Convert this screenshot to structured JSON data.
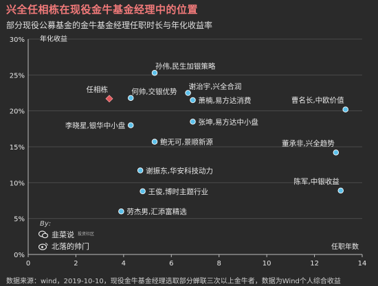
{
  "header": {
    "title": "兴全任相栋在现役金牛基金经理中的位置",
    "subtitle": "部分现役公募基金的金牛基金经理任职时长与年化收益率"
  },
  "footer": {
    "source": "数据来源：wind，2019-10-10，现役金牛基金经理选取部分蝉联三次以上金牛者，数据为Wind个人综合收益"
  },
  "credits": {
    "by_label": "By:",
    "wechat_name": "韭菜说",
    "wechat_tag": "投资社区",
    "weibo_name": "北落的帅门"
  },
  "colors": {
    "background": "#2a2a2a",
    "title": "#f27a7a",
    "point": "#5bc0ea",
    "highlight": "#e0565b",
    "axis": "#bdbdbd",
    "grid": "#4a4a4a",
    "text": "#e8e8e8"
  },
  "chart_data": {
    "type": "scatter",
    "title": "兴全任相栋在现役金牛基金经理中的位置",
    "xlabel": "任职年数",
    "ylabel": "年化收益",
    "xlim": [
      0,
      14
    ],
    "ylim": [
      0,
      30
    ],
    "x_ticks": [
      "0",
      "2",
      "4",
      "6",
      "8",
      "10",
      "12",
      "14"
    ],
    "y_ticks": [
      "0%",
      "5%",
      "10%",
      "15%",
      "20%",
      "25%",
      "30%"
    ],
    "grid": "horizontal",
    "points": [
      {
        "label": "孙伟,民生加银策略",
        "x": 5.3,
        "y": 25.3,
        "highlight": false,
        "label_pos": "above-right"
      },
      {
        "label": "何帅,交银优势",
        "x": 4.3,
        "y": 21.8,
        "highlight": false,
        "label_pos": "above-right"
      },
      {
        "label": "任相栋",
        "x": 3.4,
        "y": 21.7,
        "highlight": true,
        "label_pos": "above-left"
      },
      {
        "label": "谢治宇,兴全合润",
        "x": 6.7,
        "y": 22.5,
        "highlight": false,
        "label_pos": "above-right"
      },
      {
        "label": "萧楠,易方达消费",
        "x": 6.9,
        "y": 21.5,
        "highlight": false,
        "label_pos": "right"
      },
      {
        "label": "曹名长,中欧价值",
        "x": 13.3,
        "y": 20.2,
        "highlight": false,
        "label_pos": "above-left"
      },
      {
        "label": "李晓星,银华中小盘",
        "x": 4.3,
        "y": 18.0,
        "highlight": false,
        "label_pos": "left"
      },
      {
        "label": "张坤,易方达中小盘",
        "x": 6.9,
        "y": 18.5,
        "highlight": false,
        "label_pos": "right"
      },
      {
        "label": "鲍无可,景顺新源",
        "x": 5.3,
        "y": 15.7,
        "highlight": false,
        "label_pos": "right"
      },
      {
        "label": "董承非,兴全趋势",
        "x": 12.9,
        "y": 14.2,
        "highlight": false,
        "label_pos": "above-left"
      },
      {
        "label": "谢振东,华安科技动力",
        "x": 4.7,
        "y": 11.7,
        "highlight": false,
        "label_pos": "right"
      },
      {
        "label": "陈军,中银收益",
        "x": 13.1,
        "y": 8.9,
        "highlight": false,
        "label_pos": "above-left"
      },
      {
        "label": "王俊,博时主题行业",
        "x": 4.8,
        "y": 8.8,
        "highlight": false,
        "label_pos": "right"
      },
      {
        "label": "劳杰男,汇添富精选",
        "x": 3.9,
        "y": 6.0,
        "highlight": false,
        "label_pos": "right"
      }
    ]
  }
}
